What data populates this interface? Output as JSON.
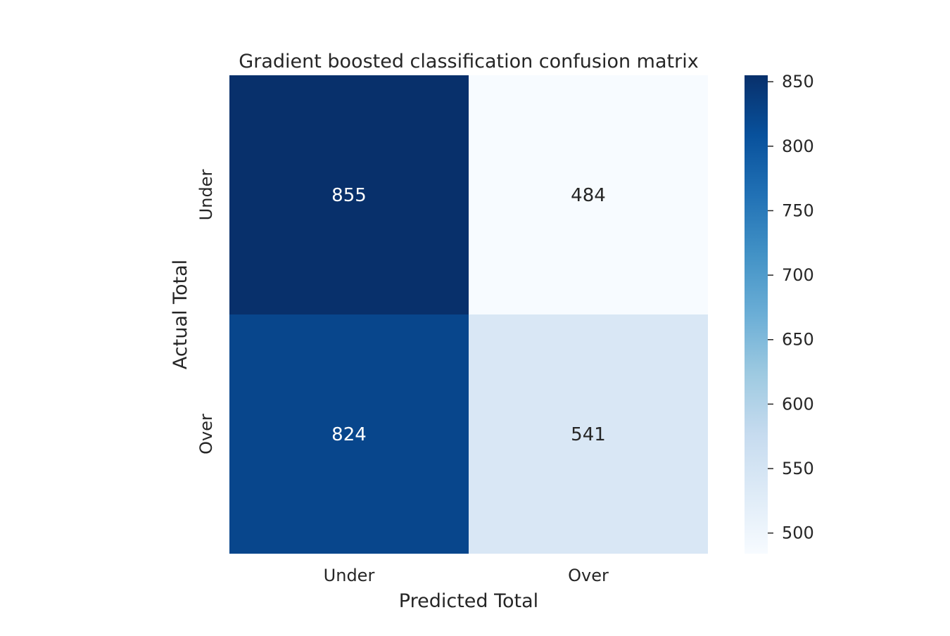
{
  "chart_data": {
    "type": "heatmap",
    "title": "Gradient boosted classification confusion matrix",
    "xlabel": "Predicted Total",
    "ylabel": "Actual Total",
    "x_categories": [
      "Under",
      "Over"
    ],
    "y_categories": [
      "Under",
      "Over"
    ],
    "values": [
      [
        855,
        484
      ],
      [
        824,
        541
      ]
    ],
    "colormap": "Blues",
    "color_range": [
      484,
      855
    ],
    "colorbar_ticks": [
      500,
      550,
      600,
      650,
      700,
      750,
      800,
      850
    ],
    "colorbar_tick_labels": [
      "500",
      "550",
      "600",
      "650",
      "700",
      "750",
      "800",
      "850"
    ]
  }
}
